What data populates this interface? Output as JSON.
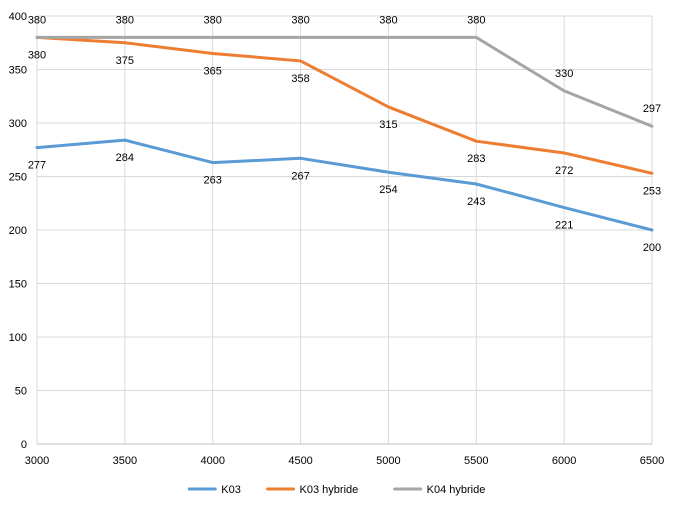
{
  "chart_data": {
    "type": "line",
    "x": [
      3000,
      3500,
      4000,
      4500,
      5000,
      5500,
      6000,
      6500
    ],
    "xlim": [
      3000,
      6500
    ],
    "ylim": [
      0,
      400
    ],
    "yticks": [
      0,
      50,
      100,
      150,
      200,
      250,
      300,
      350,
      400
    ],
    "grid": true,
    "legend": "bottom",
    "series": [
      {
        "name": "K03",
        "color": "#5b9bd5",
        "values": [
          277,
          284,
          263,
          267,
          254,
          243,
          221,
          200
        ]
      },
      {
        "name": "K03 hybride",
        "color": "#ed7d31",
        "values": [
          380,
          375,
          365,
          358,
          315,
          283,
          272,
          253
        ]
      },
      {
        "name": "K04 hybride",
        "color": "#a5a5a5",
        "values": [
          380,
          380,
          380,
          380,
          380,
          380,
          330,
          297
        ]
      }
    ]
  }
}
